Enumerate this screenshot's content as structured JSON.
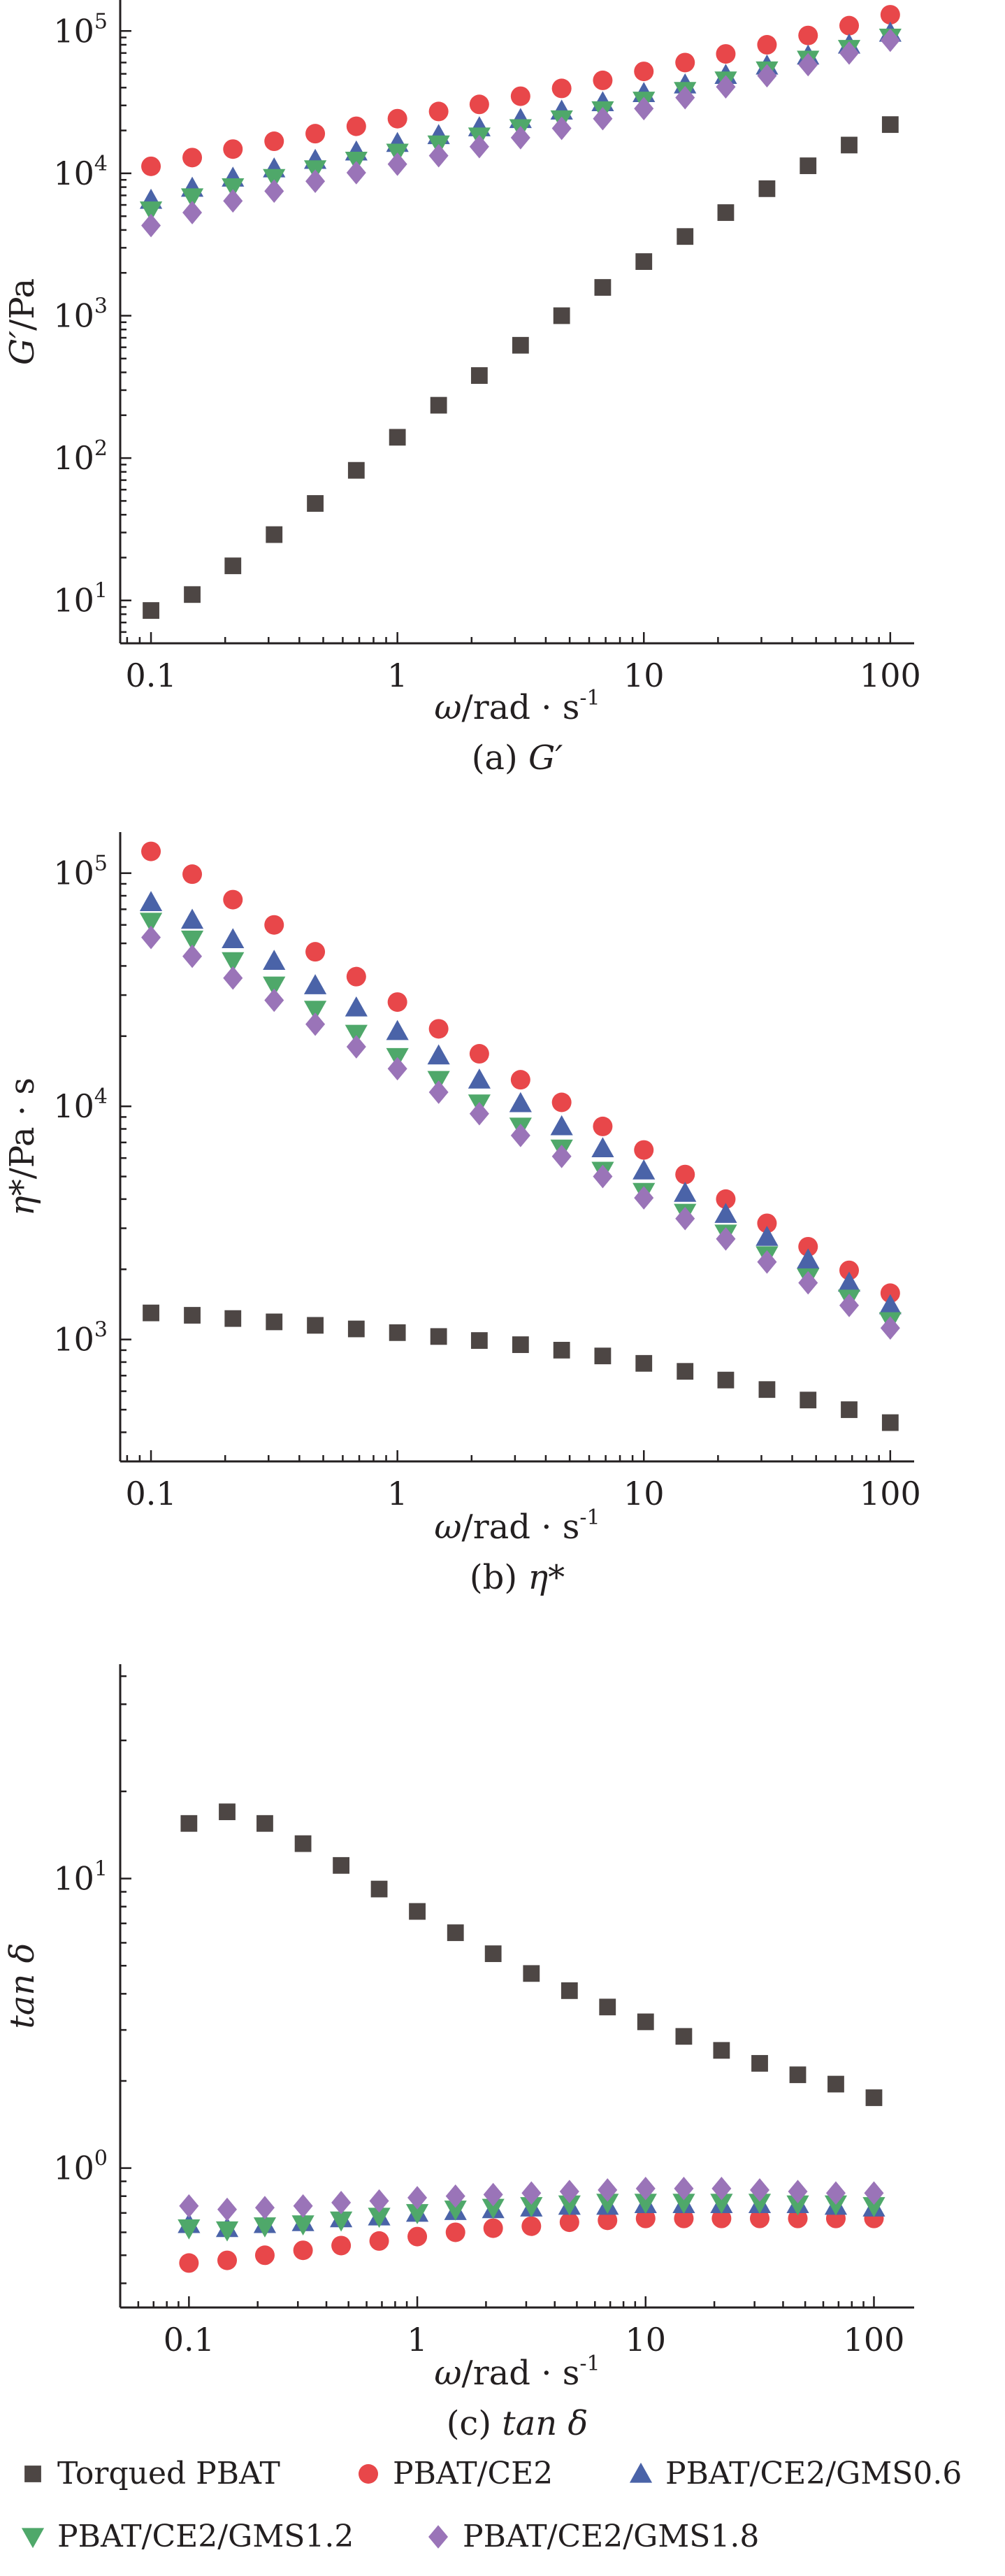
{
  "styles": {
    "Torqued PBAT": {
      "color": "#4d4644",
      "marker": "square"
    },
    "PBAT/CE2": {
      "color": "#e8474a",
      "marker": "circle"
    },
    "PBAT/CE2/GMS0.6": {
      "color": "#4a63a8",
      "marker": "triangle-up"
    },
    "PBAT/CE2/GMS1.2": {
      "color": "#4fa86a",
      "marker": "triangle-down"
    },
    "PBAT/CE2/GMS1.8": {
      "color": "#9a74b8",
      "marker": "diamond"
    }
  },
  "legend": {
    "items": [
      "Torqued PBAT",
      "PBAT/CE2",
      "PBAT/CE2/GMS0.6",
      "PBAT/CE2/GMS1.2",
      "PBAT/CE2/GMS1.8"
    ]
  },
  "chart_data": [
    {
      "type": "scatter",
      "caption_prefix": "(a) ",
      "caption_var": "G′",
      "ylabel_var": "G′",
      "ylabel_unit": "/Pa",
      "xlabel_var": "ω",
      "xlabel_unit": "/rad · s",
      "xlabel_exp": "-1",
      "xscale": "log",
      "yscale": "log",
      "xlim": [
        0.075,
        125
      ],
      "ylim": [
        5,
        165000
      ],
      "x_ticks": [
        0.1,
        1,
        10,
        100
      ],
      "x_tick_labels": [
        "0.1",
        "1",
        "10",
        "100"
      ],
      "y_ticks": [
        10,
        100,
        1000,
        10000,
        100000
      ],
      "y_tick_labels": [
        [
          "10",
          "1"
        ],
        [
          "10",
          "2"
        ],
        [
          "10",
          "3"
        ],
        [
          "10",
          "4"
        ],
        [
          "10",
          "5"
        ]
      ],
      "x": [
        0.1,
        0.147,
        0.215,
        0.316,
        0.464,
        0.681,
        1,
        1.47,
        2.15,
        3.16,
        4.64,
        6.81,
        10,
        14.7,
        21.5,
        31.6,
        46.4,
        68.1,
        100
      ],
      "series": [
        {
          "name": "Torqued PBAT",
          "values": [
            8.5,
            11,
            17.5,
            29,
            48,
            82,
            140,
            235,
            380,
            620,
            1000,
            1580,
            2400,
            3600,
            5300,
            7800,
            11300,
            15800,
            22000
          ]
        },
        {
          "name": "PBAT/CE2",
          "values": [
            11200,
            12900,
            14800,
            16800,
            19000,
            21400,
            24200,
            27200,
            30500,
            34800,
            39500,
            45000,
            52000,
            60000,
            69000,
            80000,
            93000,
            109000,
            130000
          ]
        },
        {
          "name": "PBAT/CE2/GMS0.6",
          "values": [
            6500,
            7900,
            9300,
            10800,
            12400,
            14200,
            16300,
            18500,
            21000,
            24000,
            27500,
            31500,
            36500,
            42000,
            49000,
            57000,
            67000,
            80000,
            97000
          ]
        },
        {
          "name": "PBAT/CE2/GMS1.2",
          "values": [
            5500,
            6800,
            8000,
            9300,
            10700,
            12300,
            14000,
            16000,
            18200,
            20800,
            24000,
            27800,
            32500,
            38000,
            45000,
            53000,
            63000,
            75000,
            90000
          ]
        },
        {
          "name": "PBAT/CE2/GMS1.8",
          "values": [
            4300,
            5300,
            6400,
            7500,
            8800,
            10100,
            11600,
            13300,
            15400,
            17800,
            20700,
            24200,
            28500,
            34000,
            40500,
            48500,
            58000,
            70000,
            86000
          ]
        }
      ]
    },
    {
      "type": "scatter",
      "caption_prefix": "(b) ",
      "caption_var": "η*",
      "ylabel_var": "η*",
      "ylabel_unit": "/Pa · s",
      "xlabel_var": "ω",
      "xlabel_unit": "/rad · s",
      "xlabel_exp": "-1",
      "xscale": "log",
      "yscale": "log",
      "xlim": [
        0.075,
        125
      ],
      "ylim": [
        300,
        150000
      ],
      "x_ticks": [
        0.1,
        1,
        10,
        100
      ],
      "x_tick_labels": [
        "0.1",
        "1",
        "10",
        "100"
      ],
      "y_ticks": [
        1000,
        10000,
        100000
      ],
      "y_tick_labels": [
        [
          "10",
          "3"
        ],
        [
          "10",
          "4"
        ],
        [
          "10",
          "5"
        ]
      ],
      "x": [
        0.1,
        0.147,
        0.215,
        0.316,
        0.464,
        0.681,
        1,
        1.47,
        2.15,
        3.16,
        4.64,
        6.81,
        10,
        14.7,
        21.5,
        31.6,
        46.4,
        68.1,
        100
      ],
      "series": [
        {
          "name": "Torqued PBAT",
          "values": [
            1300,
            1270,
            1230,
            1190,
            1150,
            1110,
            1070,
            1030,
            990,
            950,
            900,
            850,
            790,
            730,
            670,
            610,
            550,
            500,
            440
          ]
        },
        {
          "name": "PBAT/CE2",
          "values": [
            124000,
            99000,
            77000,
            60000,
            46000,
            36000,
            28000,
            21500,
            16800,
            13000,
            10400,
            8200,
            6500,
            5100,
            4000,
            3150,
            2500,
            1980,
            1580
          ]
        },
        {
          "name": "PBAT/CE2/GMS0.6",
          "values": [
            75000,
            63000,
            52000,
            42000,
            33000,
            26500,
            21000,
            16500,
            13000,
            10300,
            8200,
            6600,
            5300,
            4250,
            3450,
            2750,
            2200,
            1750,
            1400
          ]
        },
        {
          "name": "PBAT/CE2/GMS1.2",
          "values": [
            62000,
            52000,
            42000,
            33000,
            26000,
            20500,
            16300,
            13000,
            10300,
            8200,
            6600,
            5300,
            4300,
            3500,
            2850,
            2300,
            1850,
            1500,
            1200
          ]
        },
        {
          "name": "PBAT/CE2/GMS1.8",
          "values": [
            53000,
            44000,
            35500,
            28500,
            22500,
            18000,
            14500,
            11500,
            9300,
            7500,
            6100,
            5000,
            4050,
            3300,
            2700,
            2150,
            1750,
            1400,
            1120
          ]
        }
      ]
    },
    {
      "type": "scatter",
      "caption_prefix": "(c) ",
      "caption_var": "tan δ",
      "ylabel_var": "tan δ",
      "ylabel_unit": "",
      "xlabel_var": "ω",
      "xlabel_unit": "/rad · s",
      "xlabel_exp": "-1",
      "xscale": "log",
      "yscale": "log",
      "xlim": [
        0.05,
        150
      ],
      "ylim": [
        0.33,
        55
      ],
      "x_ticks": [
        0.1,
        1,
        10,
        100
      ],
      "x_tick_labels": [
        "0.1",
        "1",
        "10",
        "100"
      ],
      "y_ticks": [
        1,
        10
      ],
      "y_tick_labels": [
        [
          "10",
          "0"
        ],
        [
          "10",
          "1"
        ]
      ],
      "x": [
        0.1,
        0.147,
        0.215,
        0.316,
        0.464,
        0.681,
        1,
        1.47,
        2.15,
        3.16,
        4.64,
        6.81,
        10,
        14.7,
        21.5,
        31.6,
        46.4,
        68.1,
        100
      ],
      "series": [
        {
          "name": "Torqued PBAT",
          "values": [
            15.5,
            17,
            15.5,
            13.2,
            11.1,
            9.2,
            7.7,
            6.5,
            5.5,
            4.7,
            4.1,
            3.6,
            3.2,
            2.85,
            2.55,
            2.3,
            2.1,
            1.95,
            1.75
          ]
        },
        {
          "name": "PBAT/CE2",
          "values": [
            0.47,
            0.48,
            0.5,
            0.52,
            0.54,
            0.56,
            0.58,
            0.6,
            0.62,
            0.63,
            0.65,
            0.66,
            0.67,
            0.67,
            0.67,
            0.67,
            0.67,
            0.67,
            0.67
          ]
        },
        {
          "name": "PBAT/CE2/GMS0.6",
          "values": [
            0.64,
            0.62,
            0.64,
            0.65,
            0.67,
            0.68,
            0.7,
            0.71,
            0.72,
            0.73,
            0.74,
            0.74,
            0.75,
            0.75,
            0.75,
            0.75,
            0.75,
            0.74,
            0.73
          ]
        },
        {
          "name": "PBAT/CE2/GMS1.2",
          "values": [
            0.62,
            0.61,
            0.63,
            0.64,
            0.66,
            0.68,
            0.7,
            0.72,
            0.73,
            0.74,
            0.75,
            0.76,
            0.76,
            0.76,
            0.76,
            0.76,
            0.75,
            0.75,
            0.74
          ]
        },
        {
          "name": "PBAT/CE2/GMS1.8",
          "values": [
            0.74,
            0.72,
            0.73,
            0.74,
            0.76,
            0.77,
            0.79,
            0.8,
            0.81,
            0.82,
            0.83,
            0.84,
            0.85,
            0.85,
            0.85,
            0.84,
            0.83,
            0.82,
            0.82
          ]
        }
      ]
    }
  ]
}
